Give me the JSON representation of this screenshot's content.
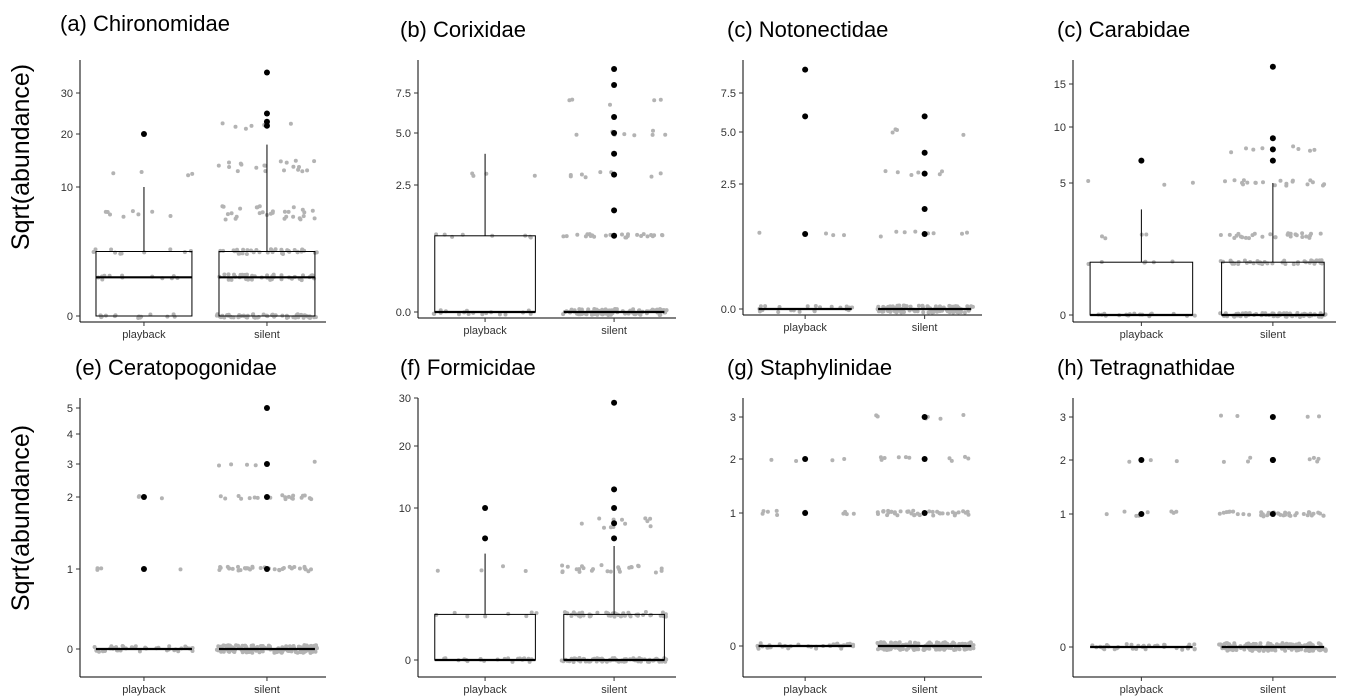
{
  "y_axis_label": "Sqrt(abundance)",
  "colors": {
    "jitter": "#b3b3b3",
    "outlier": "#000000",
    "box": "#000000"
  },
  "chart_data": [
    {
      "type": "box",
      "title": "(a) Chironomidae",
      "categories": [
        "playback",
        "silent"
      ],
      "yticks": [
        0,
        10,
        20,
        30
      ],
      "boxes": [
        {
          "q1": 0,
          "median": 3,
          "q3": 5,
          "whisker_low": 0,
          "whisker_high": 10
        },
        {
          "q1": 0,
          "median": 3,
          "q3": 5,
          "whisker_low": 0,
          "whisker_high": 18
        }
      ],
      "outliers": [
        [
          20
        ],
        [
          35,
          25,
          23,
          22
        ]
      ],
      "grid": false
    },
    {
      "type": "box",
      "title": "(b) Corixidae",
      "categories": [
        "playback",
        "silent"
      ],
      "yticks": [
        0.0,
        2.5,
        5.0,
        7.5
      ],
      "ytick_labels": [
        "0.0",
        "2.5",
        "5.0",
        "7.5"
      ],
      "boxes": [
        {
          "q1": 0,
          "median": 0,
          "q3": 1.5,
          "whisker_low": 0,
          "whisker_high": 4
        },
        {
          "q1": 0,
          "median": 0,
          "q3": 0,
          "whisker_low": 0,
          "whisker_high": 0
        }
      ],
      "outliers": [
        [],
        [
          9,
          8,
          6,
          5,
          4,
          3,
          2,
          1.5
        ]
      ],
      "grid": false
    },
    {
      "type": "box",
      "title": "(c) Notonectidae",
      "categories": [
        "playback",
        "silent"
      ],
      "yticks": [
        0.0,
        2.5,
        5.0,
        7.5
      ],
      "ytick_labels": [
        "0.0",
        "2.5",
        "5.0",
        "7.5"
      ],
      "boxes": [
        {
          "q1": 0,
          "median": 0,
          "q3": 0,
          "whisker_low": 0,
          "whisker_high": 0
        },
        {
          "q1": 0,
          "median": 0,
          "q3": 0,
          "whisker_low": 0,
          "whisker_high": 0
        }
      ],
      "outliers": [
        [
          9,
          6,
          1.5
        ],
        [
          6,
          4,
          3,
          2,
          1.5
        ]
      ],
      "grid": false
    },
    {
      "type": "box",
      "title": "(c) Carabidae",
      "categories": [
        "playback",
        "silent"
      ],
      "yticks": [
        0,
        5,
        10,
        15
      ],
      "boxes": [
        {
          "q1": 0,
          "median": 0,
          "q3": 2,
          "whisker_low": 0,
          "whisker_high": 4
        },
        {
          "q1": 0,
          "median": 0,
          "q3": 2,
          "whisker_low": 0,
          "whisker_high": 5
        }
      ],
      "outliers": [
        [
          7
        ],
        [
          17,
          9,
          8,
          7
        ]
      ],
      "grid": false
    },
    {
      "type": "box",
      "title": "(e) Ceratopogonidae",
      "categories": [
        "playback",
        "silent"
      ],
      "yticks": [
        0,
        1,
        2,
        3,
        4,
        5
      ],
      "boxes": [
        {
          "q1": 0,
          "median": 0,
          "q3": 0,
          "whisker_low": 0,
          "whisker_high": 0
        },
        {
          "q1": 0,
          "median": 0,
          "q3": 0,
          "whisker_low": 0,
          "whisker_high": 0
        }
      ],
      "outliers": [
        [
          2,
          1
        ],
        [
          5,
          3,
          2,
          1
        ]
      ],
      "grid": false
    },
    {
      "type": "box",
      "title": "(f) Formicidae",
      "categories": [
        "playback",
        "silent"
      ],
      "yticks": [
        0,
        10,
        20,
        30
      ],
      "boxes": [
        {
          "q1": 0,
          "median": 0,
          "q3": 3,
          "whisker_low": 0,
          "whisker_high": 7
        },
        {
          "q1": 0,
          "median": 0,
          "q3": 3,
          "whisker_low": 0,
          "whisker_high": 7.5
        }
      ],
      "outliers": [
        [
          10,
          8
        ],
        [
          29,
          13,
          10,
          9,
          8
        ]
      ],
      "grid": false
    },
    {
      "type": "box",
      "title": "(g) Staphylinidae",
      "categories": [
        "playback",
        "silent"
      ],
      "yticks": [
        0,
        1,
        2,
        3
      ],
      "boxes": [
        {
          "q1": 0,
          "median": 0,
          "q3": 0,
          "whisker_low": 0,
          "whisker_high": 0
        },
        {
          "q1": 0,
          "median": 0,
          "q3": 0,
          "whisker_low": 0,
          "whisker_high": 0
        }
      ],
      "outliers": [
        [
          2,
          1
        ],
        [
          3,
          2,
          1
        ]
      ],
      "grid": false
    },
    {
      "type": "box",
      "title": "(h) Tetragnathidae",
      "categories": [
        "playback",
        "silent"
      ],
      "yticks": [
        0,
        1,
        2,
        3
      ],
      "boxes": [
        {
          "q1": 0,
          "median": 0,
          "q3": 0,
          "whisker_low": 0,
          "whisker_high": 0
        },
        {
          "q1": 0,
          "median": 0,
          "q3": 0,
          "whisker_low": 0,
          "whisker_high": 0
        }
      ],
      "outliers": [
        [
          2,
          1
        ],
        [
          3,
          2,
          2,
          1
        ]
      ],
      "grid": false
    }
  ]
}
